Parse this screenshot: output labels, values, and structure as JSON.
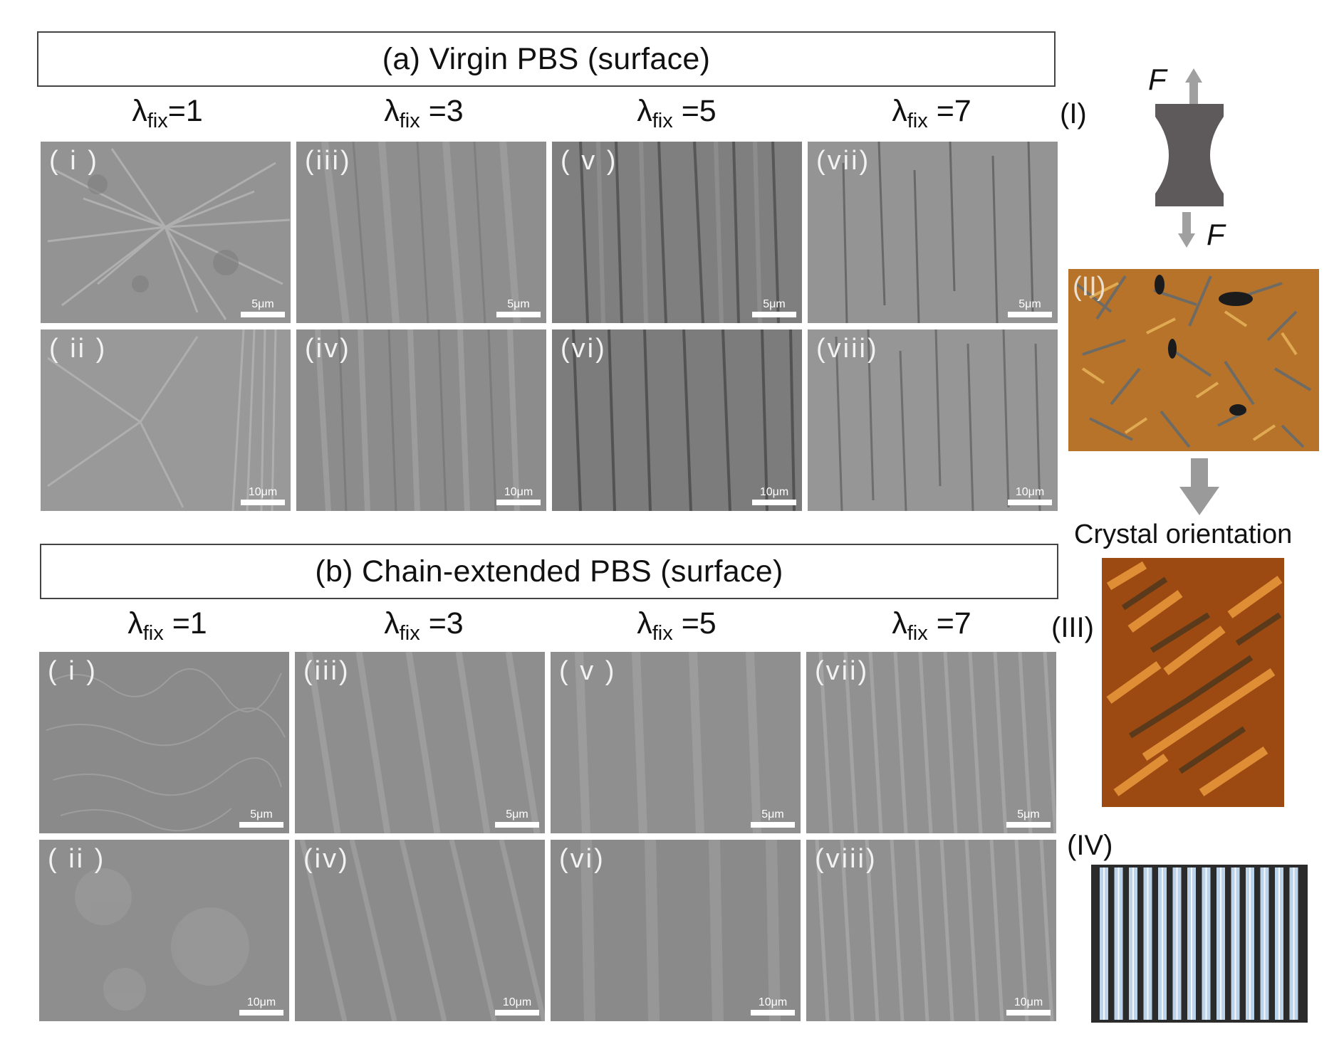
{
  "section_a": {
    "title": "(a) Virgin PBS (surface)",
    "columns": [
      {
        "symbol": "λ",
        "sub": "fix",
        "value": "=1"
      },
      {
        "symbol": "λ",
        "sub": "fix",
        "value": " =3"
      },
      {
        "symbol": "λ",
        "sub": "fix",
        "value": " =5"
      },
      {
        "symbol": "λ",
        "sub": "fix",
        "value": " =7"
      }
    ],
    "panels": [
      {
        "label": "( i )",
        "scale": "5μm"
      },
      {
        "label": "(iii)",
        "scale": "5μm"
      },
      {
        "label": "( v )",
        "scale": "5μm"
      },
      {
        "label": "(vii)",
        "scale": "5μm"
      },
      {
        "label": "( ii )",
        "scale": "10μm"
      },
      {
        "label": "(iv)",
        "scale": "10μm"
      },
      {
        "label": "(vi)",
        "scale": "10μm"
      },
      {
        "label": "(viii)",
        "scale": "10μm"
      }
    ]
  },
  "section_b": {
    "title": "(b) Chain-extended PBS (surface)",
    "columns": [
      {
        "symbol": "λ",
        "sub": "fix",
        "value": " =1"
      },
      {
        "symbol": "λ",
        "sub": "fix",
        "value": " =3"
      },
      {
        "symbol": "λ",
        "sub": "fix",
        "value": " =5"
      },
      {
        "symbol": "λ",
        "sub": "fix",
        "value": " =7"
      }
    ],
    "panels": [
      {
        "label": "( i )",
        "scale": "5μm"
      },
      {
        "label": "(iii)",
        "scale": "5μm"
      },
      {
        "label": "( v )",
        "scale": "5μm"
      },
      {
        "label": "(vii)",
        "scale": "5μm"
      },
      {
        "label": "( ii )",
        "scale": "10μm"
      },
      {
        "label": "(iv)",
        "scale": "10μm"
      },
      {
        "label": "(vi)",
        "scale": "10μm"
      },
      {
        "label": "(viii)",
        "scale": "10μm"
      }
    ]
  },
  "side": {
    "label_I": "(I)",
    "force_top": "F",
    "force_bottom": "F",
    "label_II": "(II)",
    "caption": "Crystal orientation",
    "label_III": "(III)",
    "label_IV": "(IV)"
  },
  "colors": {
    "specimen": "#5e5a5b",
    "arrow": "#a0a0a0",
    "fiber_light": "#bcd3ea",
    "fiber_dark": "#2b2b2b"
  }
}
